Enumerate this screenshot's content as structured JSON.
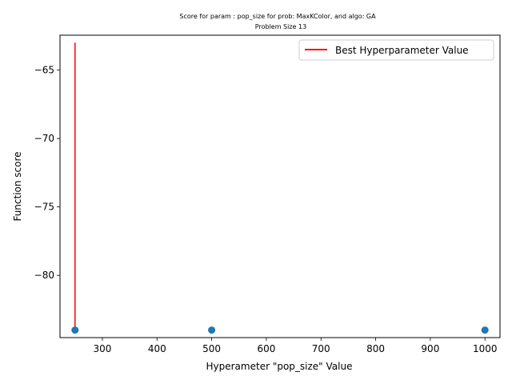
{
  "chart_data": {
    "type": "scatter",
    "title": "Score for param : pop_size for prob: MaxKColor, and algo: GA",
    "subtitle": "Problem Size 13",
    "xlabel": "Hyperameter \"pop_size\" Value",
    "ylabel": "Function score",
    "xlim": [
      222.5,
      1027.5
    ],
    "ylim": [
      -84.55,
      -62.45
    ],
    "x_ticks": [
      300,
      400,
      500,
      600,
      700,
      800,
      900,
      1000
    ],
    "y_ticks": [
      -65,
      -70,
      -75,
      -80
    ],
    "grid": false,
    "legend_position": "top-right",
    "series": [
      {
        "x": [
          250,
          500,
          1000
        ],
        "values": [
          -84,
          -84,
          -84
        ],
        "color": "#1f77b4"
      }
    ],
    "best_line": {
      "name": "Best Hyperparameter Value",
      "x": 250,
      "y_from": -84,
      "y_to": -63,
      "color": "#ff0000"
    }
  }
}
